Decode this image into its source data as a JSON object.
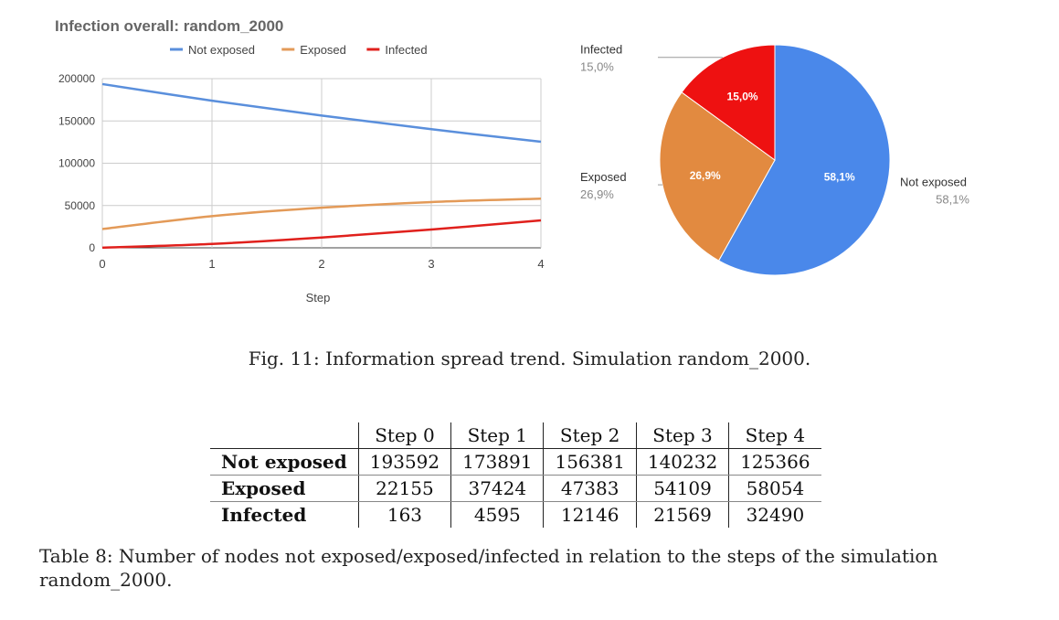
{
  "chart_data": [
    {
      "type": "line",
      "title": "Infection overall: random_2000",
      "xlabel": "Step",
      "ylabel": "",
      "x": [
        0,
        1,
        2,
        3,
        4
      ],
      "ylim": [
        0,
        200000
      ],
      "yticks": [
        0,
        50000,
        100000,
        150000,
        200000
      ],
      "yticklabels": [
        "0",
        "50000",
        "100000",
        "150000",
        "200000"
      ],
      "xticklabels": [
        "0",
        "1",
        "2",
        "3",
        "4"
      ],
      "grid": true,
      "legend": "top",
      "series": [
        {
          "name": "Not exposed",
          "color": "#5a8fdc",
          "values": [
            193592,
            173891,
            156381,
            140232,
            125366
          ]
        },
        {
          "name": "Exposed",
          "color": "#e39a58",
          "values": [
            22155,
            37424,
            47383,
            54109,
            58054
          ]
        },
        {
          "name": "Infected",
          "color": "#e0201c",
          "values": [
            163,
            4595,
            12146,
            21569,
            32490
          ]
        }
      ]
    },
    {
      "type": "pie",
      "legend": "callouts",
      "slices": [
        {
          "name": "Not exposed",
          "value": 58.1,
          "label": "58,1%",
          "callout_value": "58,1%",
          "color": "#4a88ea"
        },
        {
          "name": "Exposed",
          "value": 26.9,
          "label": "26,9%",
          "callout_value": "26,9%",
          "color": "#e28a40"
        },
        {
          "name": "Infected",
          "value": 15.0,
          "label": "15,0%",
          "callout_value": "15,0%",
          "color": "#ee1111"
        }
      ]
    }
  ],
  "figure_caption": "Fig. 11: Information spread trend. Simulation random_2000.",
  "table": {
    "columns": [
      "Step 0",
      "Step 1",
      "Step 2",
      "Step 3",
      "Step 4"
    ],
    "rows": [
      {
        "label": "Not exposed",
        "values": [
          "193592",
          "173891",
          "156381",
          "140232",
          "125366"
        ]
      },
      {
        "label": "Exposed",
        "values": [
          "22155",
          "37424",
          "47383",
          "54109",
          "58054"
        ]
      },
      {
        "label": "Infected",
        "values": [
          "163",
          "4595",
          "12146",
          "21569",
          "32490"
        ]
      }
    ]
  },
  "table_caption": "Table 8: Number of nodes not exposed/exposed/infected in relation to the steps of the simulation random_2000."
}
